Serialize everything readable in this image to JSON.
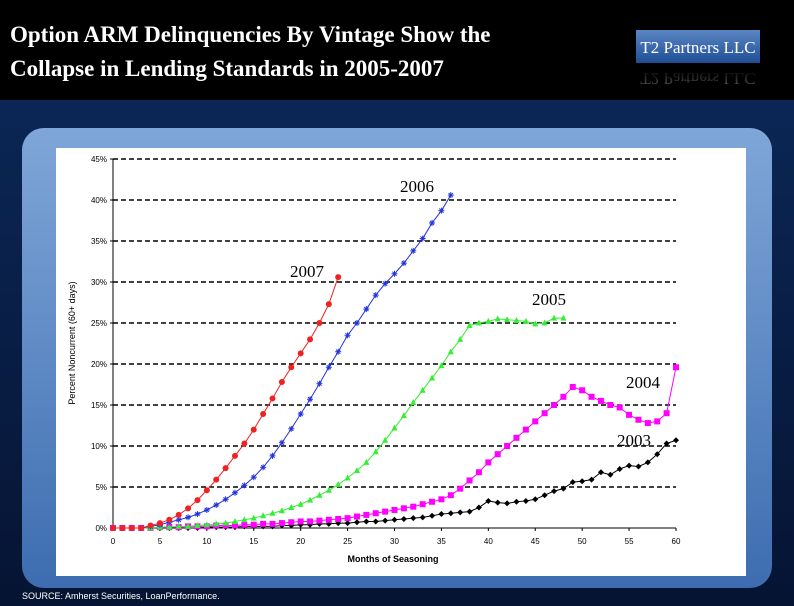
{
  "slide": {
    "title_lines": [
      "Option ARM Delinquencies By Vintage Show the",
      "Collapse in Lending Standards in 2005-2007"
    ],
    "logo": "T2 Partners LLC",
    "source": "SOURCE: Amherst Securities, LoanPerformance."
  },
  "chart_data": {
    "type": "line",
    "x_label": "Months of Seasoning",
    "y_label": "Percent Noncurrent (60+ days)",
    "xlim": [
      0,
      60
    ],
    "xticks": [
      0,
      5,
      10,
      15,
      20,
      25,
      30,
      35,
      40,
      45,
      50,
      55,
      60
    ],
    "ylim": [
      0,
      45
    ],
    "yticks": [
      {
        "value": 0,
        "label": "0%"
      },
      {
        "value": 5,
        "label": "5%"
      },
      {
        "value": 10,
        "label": "10%"
      },
      {
        "value": 15,
        "label": "15%"
      },
      {
        "value": 20,
        "label": "20%"
      },
      {
        "value": 25,
        "label": "25%"
      },
      {
        "value": 30,
        "label": "30%"
      },
      {
        "value": 35,
        "label": "35%"
      },
      {
        "value": 40,
        "label": "40%"
      },
      {
        "value": 45,
        "label": "45%"
      }
    ],
    "grid": true,
    "x": [
      0,
      1,
      2,
      3,
      4,
      5,
      6,
      7,
      8,
      9,
      10,
      11,
      12,
      13,
      14,
      15,
      16,
      17,
      18,
      19,
      20,
      21,
      22,
      23,
      24,
      25,
      26,
      27,
      28,
      29,
      30,
      31,
      32,
      33,
      34,
      35,
      36,
      37,
      38,
      39,
      40,
      41,
      42,
      43,
      44,
      45,
      46,
      47,
      48,
      49,
      50,
      51,
      52,
      53,
      54,
      55,
      56,
      57,
      58,
      59,
      60
    ],
    "series": [
      {
        "name": "2003",
        "color": "#000000",
        "marker": "diamond",
        "values": [
          0,
          0,
          0,
          0,
          0,
          0,
          0,
          0,
          0,
          0,
          0.1,
          0.1,
          0.1,
          0.1,
          0.2,
          0.2,
          0.2,
          0.2,
          0.3,
          0.3,
          0.4,
          0.4,
          0.5,
          0.5,
          0.6,
          0.6,
          0.7,
          0.8,
          0.8,
          0.9,
          1.0,
          1.1,
          1.2,
          1.3,
          1.5,
          1.7,
          1.8,
          1.9,
          2.0,
          2.5,
          3.3,
          3.1,
          3.0,
          3.2,
          3.3,
          3.5,
          4.0,
          4.5,
          4.8,
          5.6,
          5.7,
          5.9,
          6.8,
          6.5,
          7.2,
          7.6,
          7.5,
          8.0,
          9.0,
          10.3,
          10.7
        ]
      },
      {
        "name": "2004",
        "color": "#ff00ff",
        "marker": "square",
        "values": [
          0,
          0,
          0,
          0,
          0,
          0.1,
          0.1,
          0.1,
          0.2,
          0.2,
          0.2,
          0.3,
          0.3,
          0.3,
          0.4,
          0.4,
          0.5,
          0.5,
          0.6,
          0.7,
          0.8,
          0.8,
          0.9,
          1.0,
          1.1,
          1.2,
          1.4,
          1.6,
          1.8,
          2.0,
          2.2,
          2.4,
          2.6,
          2.9,
          3.2,
          3.5,
          4.0,
          4.8,
          5.8,
          6.8,
          8.0,
          9.0,
          10.0,
          11.0,
          12.0,
          13.0,
          14.0,
          15.0,
          16.0,
          17.2,
          16.8,
          16.0,
          15.5,
          15.0,
          14.7,
          13.8,
          13.2,
          12.8,
          13.0,
          14.0,
          19.6
        ]
      },
      {
        "name": "2005",
        "color": "#33ee33",
        "marker": "triangle",
        "values": [
          0,
          0,
          0,
          0,
          0,
          0.1,
          0.1,
          0.2,
          0.2,
          0.3,
          0.4,
          0.5,
          0.6,
          0.8,
          1.0,
          1.2,
          1.5,
          1.8,
          2.1,
          2.5,
          2.9,
          3.4,
          4.0,
          4.6,
          5.3,
          6.1,
          7.0,
          8.0,
          9.3,
          10.7,
          12.2,
          13.7,
          15.3,
          16.8,
          18.3,
          19.8,
          21.5,
          23.0,
          24.7,
          25.0,
          25.2,
          25.5,
          25.4,
          25.3,
          25.2,
          24.9,
          25.0,
          25.6,
          25.6,
          null,
          null,
          null,
          null,
          null,
          null,
          null,
          null,
          null,
          null,
          null,
          null
        ]
      },
      {
        "name": "2006",
        "color": "#2233dd",
        "marker": "asterisk",
        "values": [
          0,
          0,
          0,
          0,
          0.2,
          0.4,
          0.7,
          1.0,
          1.3,
          1.7,
          2.2,
          2.8,
          3.5,
          4.3,
          5.2,
          6.2,
          7.4,
          8.8,
          10.4,
          12.1,
          13.9,
          15.7,
          17.6,
          19.6,
          21.5,
          23.5,
          25.0,
          26.7,
          28.4,
          29.8,
          31.0,
          32.3,
          33.8,
          35.3,
          37.2,
          38.7,
          40.6,
          null,
          null,
          null,
          null,
          null,
          null,
          null,
          null,
          null,
          null,
          null,
          null,
          null,
          null,
          null,
          null,
          null,
          null,
          null,
          null,
          null,
          null,
          null,
          null
        ]
      },
      {
        "name": "2007",
        "color": "#ee2222",
        "marker": "circle",
        "values": [
          0,
          0,
          0,
          0,
          0.3,
          0.6,
          1.0,
          1.6,
          2.4,
          3.4,
          4.6,
          5.9,
          7.3,
          8.8,
          10.3,
          12.0,
          13.9,
          15.8,
          17.8,
          19.6,
          21.3,
          23.0,
          25.0,
          27.3,
          30.6,
          null,
          null,
          null,
          null,
          null,
          null,
          null,
          null,
          null,
          null,
          null,
          null,
          null,
          null,
          null,
          null,
          null,
          null,
          null,
          null,
          null,
          null,
          null,
          null,
          null,
          null,
          null,
          null,
          null,
          null,
          null,
          null,
          null,
          null,
          null,
          null
        ]
      }
    ]
  }
}
